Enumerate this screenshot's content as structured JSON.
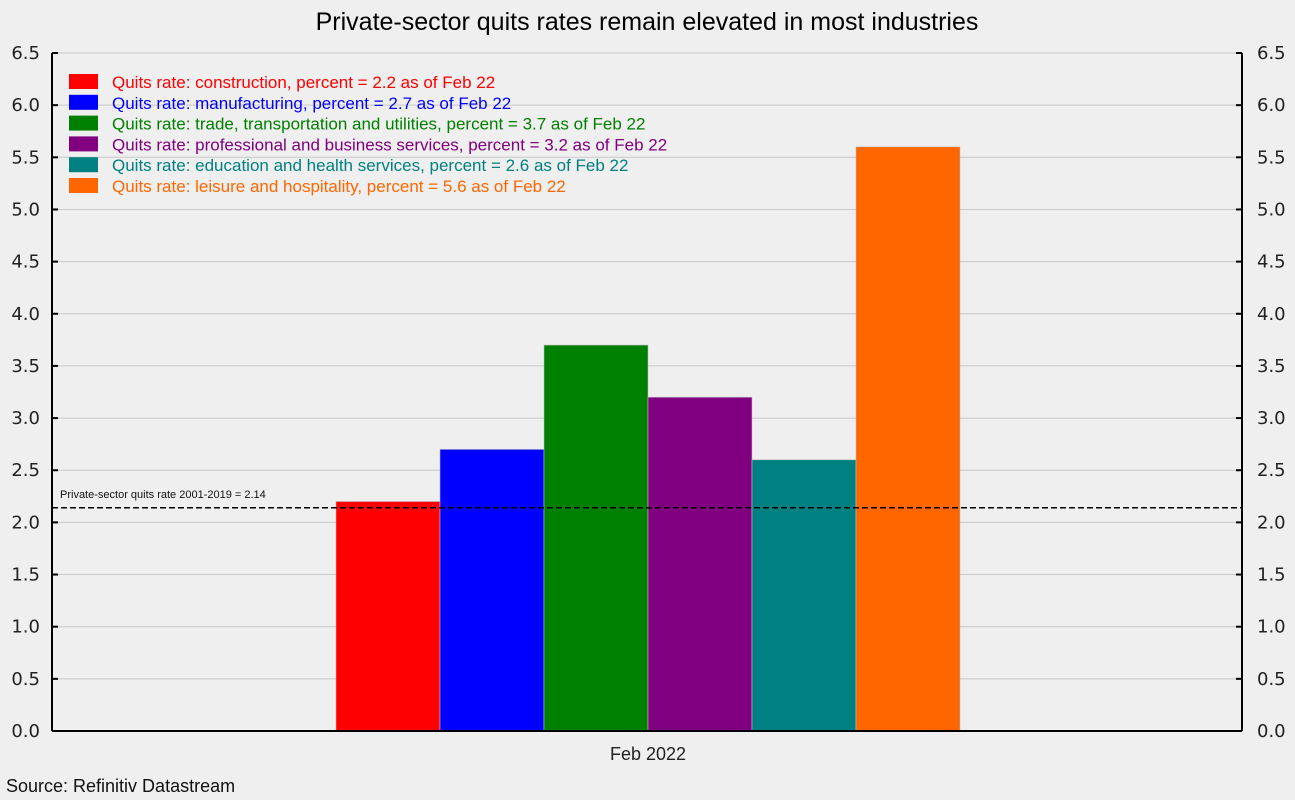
{
  "chart_data": {
    "type": "bar",
    "title": "Private-sector quits rates remain elevated in most industries",
    "categories": [
      "Feb 2022"
    ],
    "series": [
      {
        "name": "Quits rate: construction, percent = 2.2 as of Feb 22",
        "values": [
          2.2
        ],
        "color": "#ff0000"
      },
      {
        "name": "Quits rate: manufacturing, percent = 2.7 as of Feb 22",
        "values": [
          2.7
        ],
        "color": "#0000ff"
      },
      {
        "name": "Quits rate: trade, transportation and utilities, percent = 3.7 as of Feb 22",
        "values": [
          3.7
        ],
        "color": "#008000"
      },
      {
        "name": "Quits rate: professional and business services, percent = 3.2 as of Feb 22",
        "values": [
          3.2
        ],
        "color": "#800080"
      },
      {
        "name": "Quits rate: education and health services, percent = 2.6 as of Feb 22",
        "values": [
          2.6
        ],
        "color": "#008080"
      },
      {
        "name": "Quits rate: leisure and hospitality, percent = 5.6 as of Feb 22",
        "values": [
          5.6
        ],
        "color": "#ff6600"
      }
    ],
    "xlabel": "",
    "ylabel": "",
    "ylim": [
      0,
      6.5
    ],
    "yticks": [
      "0.0",
      "0.5",
      "1.0",
      "1.5",
      "2.0",
      "2.5",
      "3.0",
      "3.5",
      "4.0",
      "4.5",
      "5.0",
      "5.5",
      "6.0",
      "6.5"
    ],
    "y_axis_sides": [
      "left",
      "right"
    ],
    "grid": true,
    "legend_position": "top-left",
    "reference_line": {
      "value": 2.14,
      "label": "Private-sector quits rate 2001-2019 = 2.14",
      "style": "dashed"
    },
    "source": "Source: Refinitiv Datastream"
  }
}
